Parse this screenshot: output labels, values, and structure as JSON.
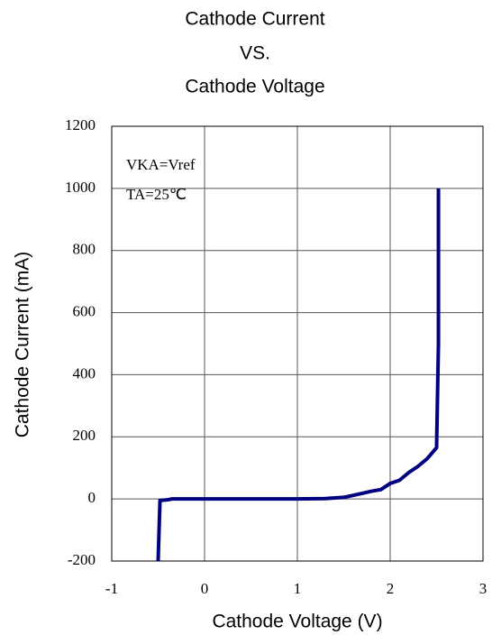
{
  "chart_data": {
    "type": "line",
    "title": [
      "Cathode Current",
      "VS.",
      "Cathode Voltage"
    ],
    "xlabel": "Cathode Voltage (V)",
    "ylabel": "Cathode Current (mA)",
    "annotations": [
      "VKA=Vref",
      "TA=25℃"
    ],
    "xlim": [
      -1,
      3
    ],
    "xticks": [
      -1,
      0,
      1,
      2,
      3
    ],
    "ylim": [
      -200,
      1200
    ],
    "yticks": [
      -200,
      0,
      200,
      400,
      600,
      800,
      1000,
      1200
    ],
    "grid": true,
    "series": [
      {
        "color": "#000080",
        "x": [
          -0.5,
          -0.49,
          -0.48,
          -0.4,
          -0.35,
          0,
          1,
          1.3,
          1.5,
          1.7,
          1.8,
          1.9,
          2.0,
          2.1,
          2.2,
          2.3,
          2.4,
          2.5,
          2.52,
          2.52
        ],
        "values": [
          -200,
          -100,
          -5,
          -3,
          0,
          0,
          0,
          1,
          5,
          18,
          25,
          30,
          50,
          60,
          85,
          105,
          130,
          165,
          500,
          1000
        ]
      }
    ]
  }
}
